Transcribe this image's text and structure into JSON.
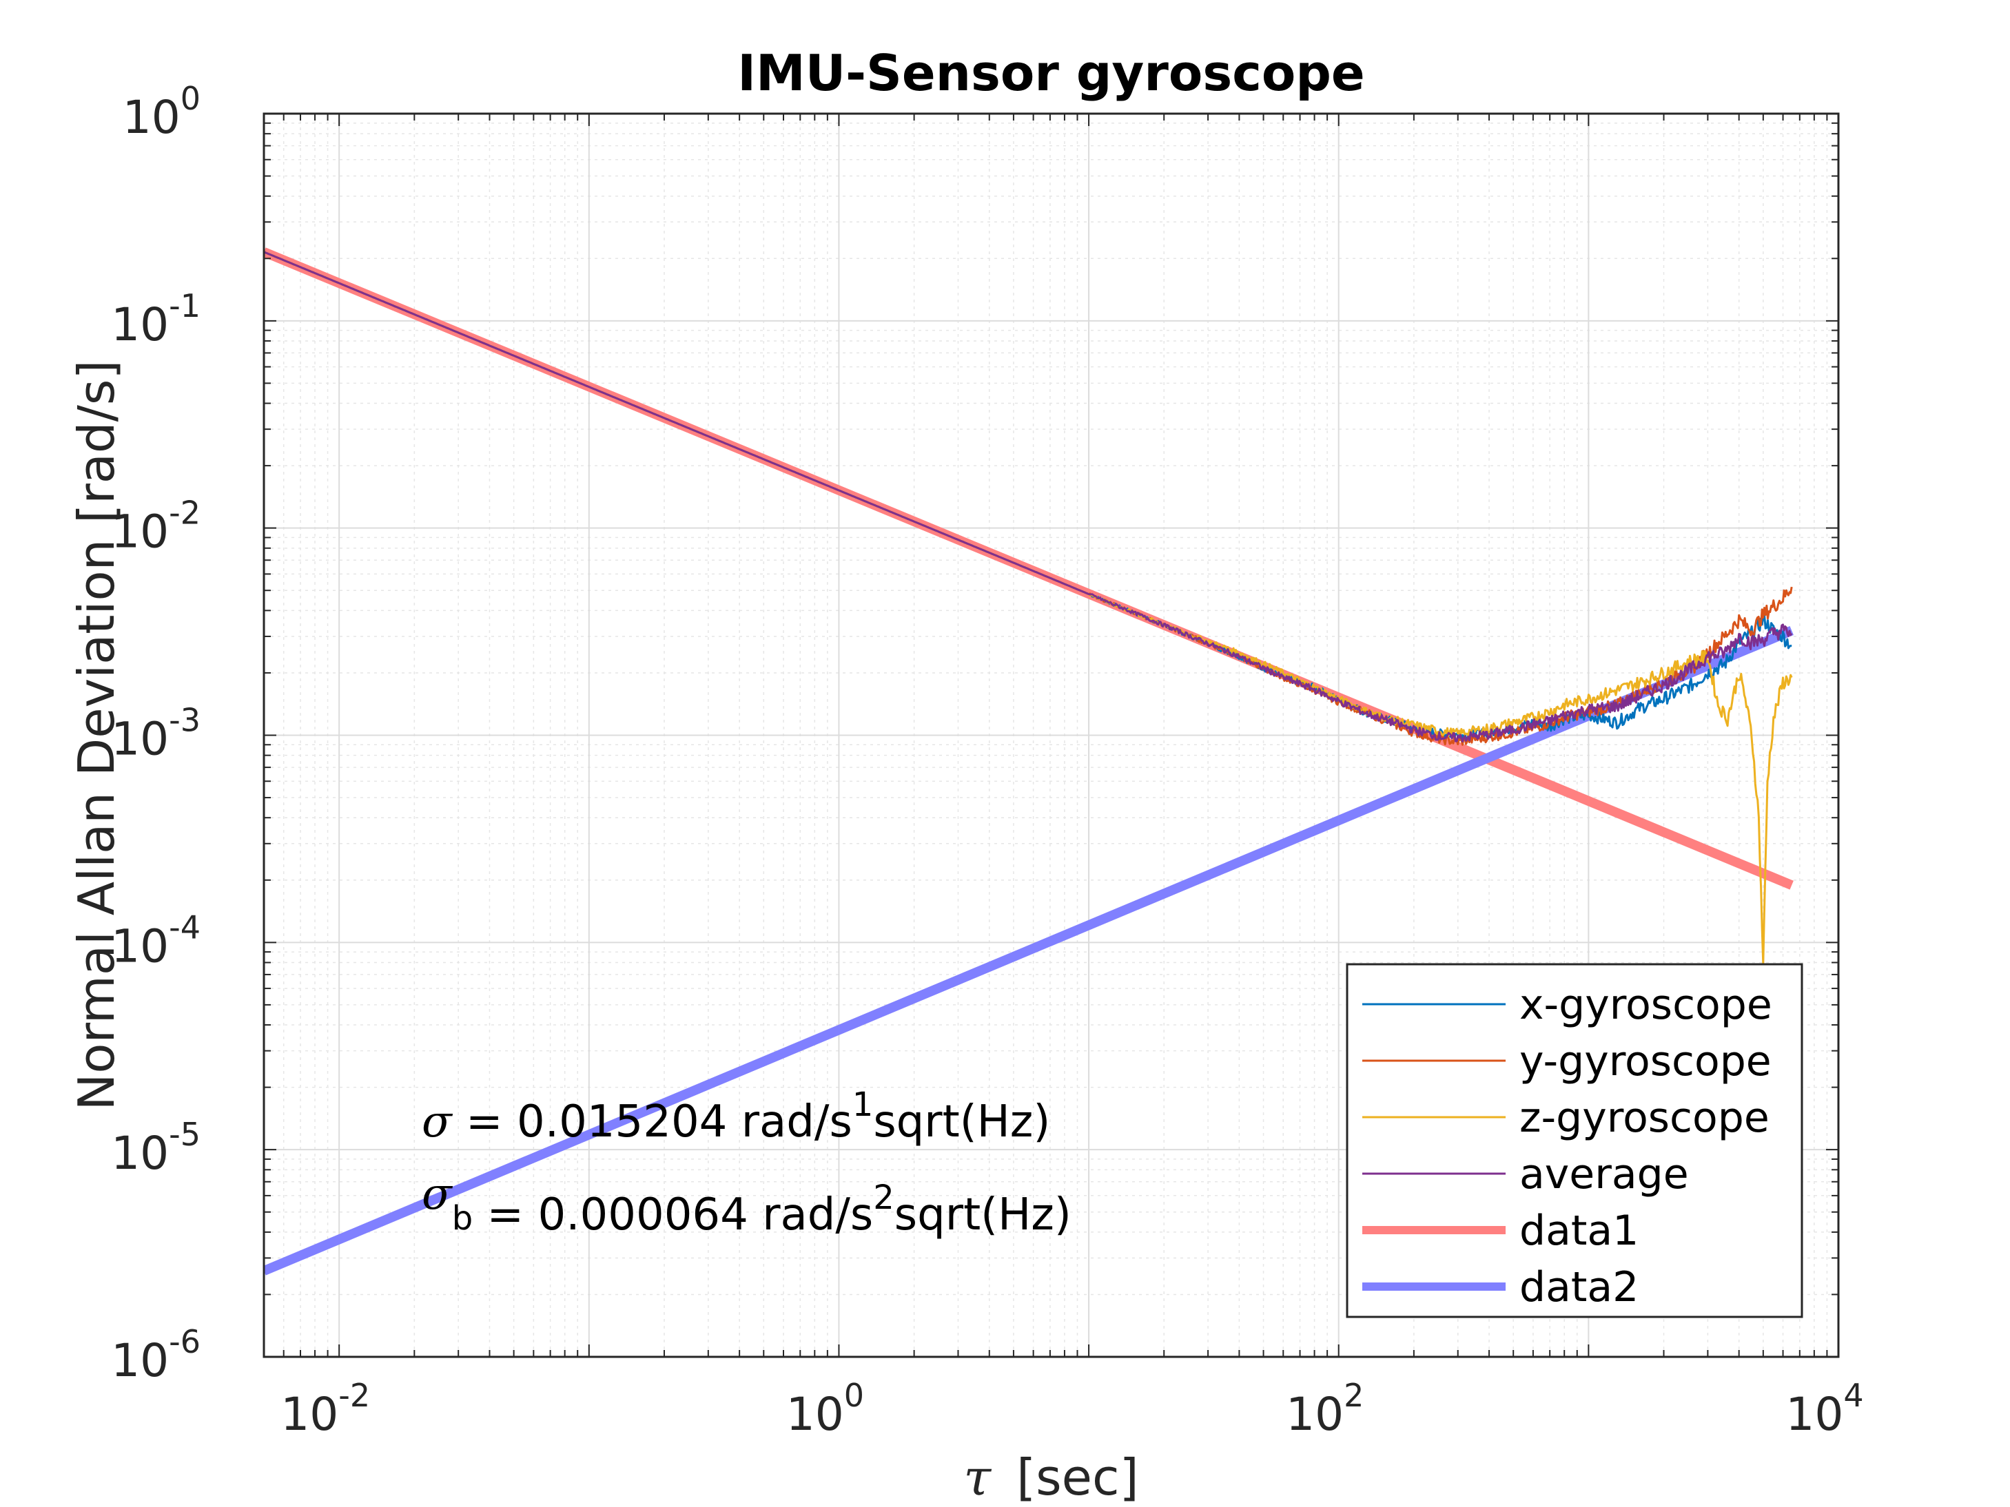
{
  "chart_data": {
    "type": "line",
    "title": "IMU-Sensor gyroscope",
    "xlabel": "[sec]",
    "xlabel_symbol": "τ",
    "ylabel": "Normal Allan Deviation [rad/s]",
    "xscale": "log",
    "yscale": "log",
    "xlim": [
      0.005,
      10000
    ],
    "ylim": [
      1e-06,
      1
    ],
    "grid": true,
    "x_tick_labels": [
      {
        "base": "10",
        "exp": "-2",
        "value": 0.01
      },
      {
        "base": "10",
        "exp": "0",
        "value": 1
      },
      {
        "base": "10",
        "exp": "2",
        "value": 100
      },
      {
        "base": "10",
        "exp": "4",
        "value": 10000
      }
    ],
    "y_tick_labels": [
      {
        "base": "10",
        "exp": "0",
        "value": 1
      },
      {
        "base": "10",
        "exp": "-1",
        "value": 0.1
      },
      {
        "base": "10",
        "exp": "-2",
        "value": 0.01
      },
      {
        "base": "10",
        "exp": "-3",
        "value": 0.001
      },
      {
        "base": "10",
        "exp": "-4",
        "value": 0.0001
      },
      {
        "base": "10",
        "exp": "-5",
        "value": 1e-05
      },
      {
        "base": "10",
        "exp": "-6",
        "value": 1e-06
      }
    ],
    "legend_position": "bottom-right",
    "series": [
      {
        "name": "x-gyroscope",
        "color": "#0072BD",
        "width": 3,
        "x": [
          0.005,
          0.01,
          0.1,
          1,
          5,
          10,
          20,
          40,
          60,
          80,
          100,
          130,
          160,
          200,
          250,
          300,
          400,
          500,
          600,
          700,
          800,
          1000,
          1300,
          1600,
          2000,
          2600,
          3000,
          3500,
          4000,
          4500,
          5000,
          5500,
          6000,
          6500
        ],
        "y": [
          0.215,
          0.152,
          0.048,
          0.0152,
          0.0068,
          0.0048,
          0.0034,
          0.0024,
          0.0019,
          0.0017,
          0.00148,
          0.00128,
          0.00118,
          0.00108,
          0.00102,
          0.001,
          0.00103,
          0.00108,
          0.00115,
          0.0011,
          0.0012,
          0.00125,
          0.00115,
          0.00135,
          0.0015,
          0.00175,
          0.002,
          0.0022,
          0.0028,
          0.0031,
          0.0036,
          0.0032,
          0.003,
          0.0027
        ]
      },
      {
        "name": "y-gyroscope",
        "color": "#D95319",
        "width": 3,
        "x": [
          0.005,
          0.01,
          0.1,
          1,
          5,
          10,
          20,
          40,
          60,
          80,
          100,
          130,
          160,
          200,
          250,
          300,
          400,
          500,
          600,
          700,
          800,
          1000,
          1300,
          1600,
          2000,
          2600,
          3000,
          3500,
          4000,
          4500,
          5000,
          5500,
          6000,
          6500
        ],
        "y": [
          0.215,
          0.152,
          0.048,
          0.0152,
          0.0068,
          0.0048,
          0.0034,
          0.0024,
          0.0019,
          0.00165,
          0.00145,
          0.00128,
          0.00115,
          0.00103,
          0.00096,
          0.00093,
          0.00098,
          0.00103,
          0.00108,
          0.00115,
          0.00122,
          0.0013,
          0.0014,
          0.0016,
          0.0018,
          0.0021,
          0.0025,
          0.003,
          0.0036,
          0.0032,
          0.0038,
          0.0042,
          0.0046,
          0.0052
        ]
      },
      {
        "name": "z-gyroscope",
        "color": "#EDB120",
        "width": 3,
        "x": [
          0.005,
          0.01,
          0.1,
          1,
          5,
          10,
          20,
          40,
          60,
          80,
          100,
          130,
          160,
          200,
          250,
          300,
          400,
          500,
          600,
          700,
          800,
          1000,
          1300,
          1600,
          2000,
          2600,
          3000,
          3300,
          3600,
          4000,
          4200,
          4500,
          4800,
          5000,
          5200,
          5500,
          6000,
          6500
        ],
        "y": [
          0.215,
          0.152,
          0.048,
          0.0152,
          0.0068,
          0.0048,
          0.0034,
          0.0025,
          0.002,
          0.0017,
          0.0015,
          0.0013,
          0.0012,
          0.00112,
          0.00105,
          0.00102,
          0.00108,
          0.00115,
          0.00122,
          0.0013,
          0.0014,
          0.0015,
          0.00165,
          0.0018,
          0.002,
          0.0023,
          0.0024,
          0.0014,
          0.0012,
          0.002,
          0.0016,
          0.001,
          0.0004,
          8e-05,
          0.0006,
          0.0012,
          0.0018,
          0.0019
        ]
      },
      {
        "name": "average",
        "color": "#7E2F8E",
        "width": 3,
        "x": [
          0.005,
          0.01,
          0.1,
          1,
          5,
          10,
          20,
          40,
          60,
          80,
          100,
          130,
          160,
          200,
          250,
          300,
          400,
          500,
          600,
          700,
          800,
          1000,
          1300,
          1600,
          2000,
          2600,
          3000,
          3500,
          4000,
          4500,
          5000,
          5500,
          6000,
          6500
        ],
        "y": [
          0.215,
          0.152,
          0.048,
          0.0152,
          0.0068,
          0.0048,
          0.0034,
          0.0024,
          0.0019,
          0.00166,
          0.00146,
          0.00127,
          0.00117,
          0.00106,
          0.00099,
          0.00097,
          0.00101,
          0.00106,
          0.00113,
          0.00117,
          0.00125,
          0.00133,
          0.00138,
          0.00155,
          0.00175,
          0.0021,
          0.0024,
          0.0025,
          0.003,
          0.0028,
          0.0029,
          0.0031,
          0.0032,
          0.0031
        ]
      },
      {
        "name": "data1",
        "color": "#FF8080",
        "width": 14,
        "x": [
          0.005,
          6500
        ],
        "y": [
          0.215,
          0.000189
        ]
      },
      {
        "name": "data2",
        "color": "#8080FF",
        "width": 14,
        "x": [
          0.005,
          6500
        ],
        "y": [
          2.6e-06,
          0.0032
        ]
      }
    ],
    "annotations": [
      {
        "sym": "σ",
        "sub": "",
        "text": " = 0.015204 rad/s",
        "sup": "1",
        "tail": "sqrt(Hz)"
      },
      {
        "sym": "σ",
        "sub": "b",
        "text": " = 0.000064 rad/s",
        "sup": "2",
        "tail": "sqrt(Hz)"
      }
    ]
  }
}
